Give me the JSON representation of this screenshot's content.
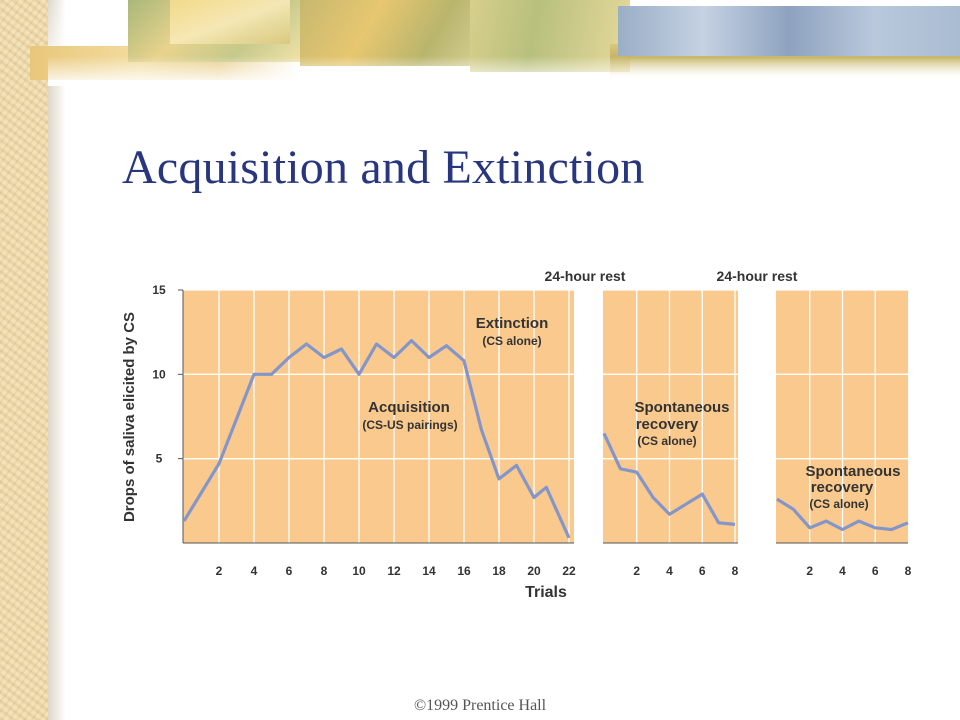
{
  "slide": {
    "title": "Acquisition and Extinction",
    "copyright": "©1999 Prentice Hall"
  },
  "colors": {
    "title": "#27367f",
    "plot_background": "#f9c98d",
    "grid": "#ffffff",
    "line": "#8496c9",
    "text": "#333333"
  },
  "chart_data": {
    "type": "line",
    "ylabel": "Drops of saliva elicited by CS",
    "xlabel": "Trials",
    "ylim": [
      0,
      15
    ],
    "y_ticks": [
      5,
      10,
      15
    ],
    "grid": true,
    "panels": [
      {
        "x_ticks": [
          2,
          4,
          6,
          8,
          10,
          12,
          14,
          16,
          18,
          20,
          22
        ],
        "xlim": [
          0,
          22
        ],
        "top_label": "",
        "annotations": [
          "Extinction",
          "(CS alone)",
          "Acquisition",
          "(CS-US pairings)"
        ],
        "series": [
          {
            "x": [
              0,
              2,
              4,
              5,
              6,
              7,
              8,
              9,
              10,
              11,
              12,
              13,
              14,
              15,
              16,
              17,
              18,
              19,
              20,
              20.7,
              22
            ],
            "y": [
              1.3,
              4.7,
              10.0,
              10.0,
              11.0,
              11.8,
              11.0,
              11.5,
              10.0,
              11.8,
              11.0,
              12.0,
              11.0,
              11.7,
              10.8,
              6.7,
              3.8,
              4.6,
              2.7,
              3.3,
              0.3
            ]
          }
        ]
      },
      {
        "x_ticks": [
          2,
          4,
          6,
          8
        ],
        "xlim": [
          0,
          8
        ],
        "top_label": "24-hour rest",
        "annotations": [
          "Spontaneous",
          "recovery",
          "(CS alone)"
        ],
        "series": [
          {
            "x": [
              0,
              1,
              2,
              3,
              4,
              5,
              6,
              7,
              8
            ],
            "y": [
              6.5,
              4.4,
              4.2,
              2.7,
              1.7,
              2.3,
              2.9,
              1.2,
              1.1
            ]
          }
        ]
      },
      {
        "x_ticks": [
          2,
          4,
          6,
          8
        ],
        "xlim": [
          0,
          8
        ],
        "top_label": "24-hour rest",
        "annotations": [
          "Spontaneous",
          "recovery",
          "(CS alone)"
        ],
        "series": [
          {
            "x": [
              0,
              1,
              2,
              3,
              4,
              5,
              6,
              7,
              8
            ],
            "y": [
              2.6,
              2.0,
              0.9,
              1.3,
              0.8,
              1.3,
              0.9,
              0.8,
              1.2
            ]
          }
        ]
      }
    ]
  }
}
